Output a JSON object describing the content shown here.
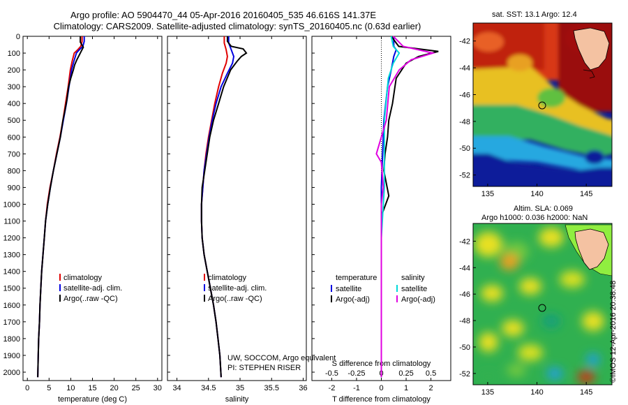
{
  "header": {
    "line1": "Argo profile: AO 5904470_44 05-Apr-2016 20160405_535 46.616S 141.37E",
    "line2": "Climatology: CARS2009. Satellite-adjusted climatology: synTS_20160405.nc (0.63d earlier)"
  },
  "footer": {
    "credit1": "UW, SOCCOM, Argo equivalent",
    "credit2": "PI: STEPHEN RISER",
    "stamp": "©IMOS 12-Apr-2016 20:38:48"
  },
  "chart_data": [
    {
      "type": "line",
      "panel": "temperature",
      "xlabel": "temperature (deg C)",
      "ylabel": "",
      "xlim": [
        -1,
        31
      ],
      "ylim": [
        2050,
        0
      ],
      "xticks": [
        0,
        5,
        10,
        15,
        20,
        25,
        30
      ],
      "yticks": [
        0,
        100,
        200,
        300,
        400,
        500,
        600,
        700,
        800,
        900,
        1000,
        1100,
        1200,
        1300,
        1400,
        1500,
        1600,
        1700,
        1800,
        1900,
        2000
      ],
      "legend": [
        "climatology",
        "satellite-adj. clim.",
        "Argo(..raw -QC)"
      ],
      "legend_position": "lower-center",
      "series": [
        {
          "name": "climatology",
          "color": "#e00000",
          "points": [
            [
              12.6,
              0
            ],
            [
              12.6,
              30
            ],
            [
              12.3,
              60
            ],
            [
              11.6,
              80
            ],
            [
              10.8,
              100
            ],
            [
              10.3,
              150
            ],
            [
              9.9,
              200
            ],
            [
              9.4,
              300
            ],
            [
              8.8,
              400
            ],
            [
              8.2,
              500
            ],
            [
              7.5,
              600
            ],
            [
              6.7,
              700
            ],
            [
              6.0,
              800
            ],
            [
              5.2,
              900
            ],
            [
              4.6,
              1000
            ],
            [
              4.2,
              1100
            ],
            [
              3.9,
              1200
            ],
            [
              3.6,
              1300
            ],
            [
              3.3,
              1400
            ],
            [
              3.1,
              1500
            ],
            [
              2.9,
              1600
            ],
            [
              2.8,
              1700
            ],
            [
              2.6,
              1800
            ],
            [
              2.5,
              1900
            ],
            [
              2.4,
              2030
            ]
          ]
        },
        {
          "name": "satellite-adj. clim.",
          "color": "#0000e0",
          "points": [
            [
              13.1,
              0
            ],
            [
              13.1,
              30
            ],
            [
              12.8,
              60
            ],
            [
              12.0,
              80
            ],
            [
              11.3,
              100
            ],
            [
              10.7,
              150
            ],
            [
              10.2,
              200
            ],
            [
              9.6,
              300
            ],
            [
              9.0,
              400
            ],
            [
              8.3,
              500
            ],
            [
              7.6,
              600
            ],
            [
              6.8,
              700
            ],
            [
              6.0,
              800
            ],
            [
              5.3,
              900
            ],
            [
              4.7,
              1000
            ],
            [
              4.2,
              1100
            ],
            [
              3.9,
              1200
            ],
            [
              3.6,
              1300
            ],
            [
              3.3,
              1400
            ],
            [
              3.1,
              1500
            ],
            [
              2.9,
              1600
            ],
            [
              2.8,
              1700
            ],
            [
              2.6,
              1800
            ],
            [
              2.5,
              1900
            ],
            [
              2.4,
              2030
            ]
          ]
        },
        {
          "name": "Argo(..raw -QC)",
          "color": "#000000",
          "points": [
            [
              12.2,
              0
            ],
            [
              12.2,
              35
            ],
            [
              12.9,
              65
            ],
            [
              12.4,
              90
            ],
            [
              12.0,
              110
            ],
            [
              11.4,
              140
            ],
            [
              10.9,
              170
            ],
            [
              10.6,
              200
            ],
            [
              10.0,
              250
            ],
            [
              9.5,
              300
            ],
            [
              9.1,
              380
            ],
            [
              8.6,
              450
            ],
            [
              8.2,
              500
            ],
            [
              7.6,
              600
            ],
            [
              6.8,
              700
            ],
            [
              6.0,
              800
            ],
            [
              5.3,
              900
            ],
            [
              4.7,
              1000
            ],
            [
              4.2,
              1100
            ],
            [
              3.9,
              1200
            ],
            [
              3.6,
              1300
            ],
            [
              3.3,
              1400
            ],
            [
              3.1,
              1500
            ],
            [
              2.9,
              1600
            ],
            [
              2.8,
              1700
            ],
            [
              2.6,
              1800
            ],
            [
              2.5,
              1900
            ],
            [
              2.4,
              2030
            ]
          ]
        }
      ]
    },
    {
      "type": "line",
      "panel": "salinity",
      "xlabel": "salinity",
      "ylabel": "",
      "xlim": [
        33.85,
        36.05
      ],
      "ylim": [
        2050,
        0
      ],
      "xticks": [
        34,
        34.5,
        35,
        35.5,
        36
      ],
      "legend": [
        "climatology",
        "satellite-adj. clim.",
        "Argo(..raw -QC)"
      ],
      "legend_position": "lower-center",
      "series": [
        {
          "name": "climatology",
          "color": "#e00000",
          "points": [
            [
              34.75,
              0
            ],
            [
              34.75,
              40
            ],
            [
              34.78,
              80
            ],
            [
              34.8,
              120
            ],
            [
              34.78,
              160
            ],
            [
              34.72,
              220
            ],
            [
              34.66,
              300
            ],
            [
              34.6,
              400
            ],
            [
              34.55,
              500
            ],
            [
              34.5,
              600
            ],
            [
              34.46,
              700
            ],
            [
              34.43,
              800
            ],
            [
              34.41,
              900
            ],
            [
              34.39,
              1000
            ],
            [
              34.39,
              1100
            ],
            [
              34.4,
              1200
            ],
            [
              34.43,
              1300
            ],
            [
              34.48,
              1400
            ],
            [
              34.53,
              1500
            ],
            [
              34.58,
              1600
            ],
            [
              34.62,
              1700
            ],
            [
              34.65,
              1800
            ],
            [
              34.68,
              1900
            ],
            [
              34.7,
              2030
            ]
          ]
        },
        {
          "name": "satellite-adj. clim.",
          "color": "#0000e0",
          "points": [
            [
              34.82,
              0
            ],
            [
              34.82,
              40
            ],
            [
              34.86,
              80
            ],
            [
              34.9,
              120
            ],
            [
              34.88,
              160
            ],
            [
              34.8,
              220
            ],
            [
              34.7,
              300
            ],
            [
              34.62,
              400
            ],
            [
              34.56,
              500
            ],
            [
              34.51,
              600
            ],
            [
              34.47,
              700
            ],
            [
              34.43,
              800
            ],
            [
              34.41,
              900
            ],
            [
              34.39,
              1000
            ],
            [
              34.39,
              1100
            ],
            [
              34.4,
              1200
            ],
            [
              34.43,
              1300
            ],
            [
              34.48,
              1400
            ],
            [
              34.53,
              1500
            ],
            [
              34.58,
              1600
            ],
            [
              34.62,
              1700
            ],
            [
              34.65,
              1800
            ],
            [
              34.68,
              1900
            ],
            [
              34.7,
              2030
            ]
          ]
        },
        {
          "name": "Argo(..raw -QC)",
          "color": "#000000",
          "points": [
            [
              34.8,
              0
            ],
            [
              34.8,
              30
            ],
            [
              34.86,
              60
            ],
            [
              35.05,
              75
            ],
            [
              35.1,
              100
            ],
            [
              35.02,
              120
            ],
            [
              34.95,
              150
            ],
            [
              34.85,
              200
            ],
            [
              34.74,
              300
            ],
            [
              34.66,
              400
            ],
            [
              34.58,
              500
            ],
            [
              34.52,
              600
            ],
            [
              34.48,
              700
            ],
            [
              34.44,
              800
            ],
            [
              34.4,
              900
            ],
            [
              34.39,
              1000
            ],
            [
              34.39,
              1100
            ],
            [
              34.4,
              1200
            ],
            [
              34.43,
              1300
            ],
            [
              34.48,
              1400
            ],
            [
              34.53,
              1500
            ],
            [
              34.58,
              1600
            ],
            [
              34.62,
              1700
            ],
            [
              34.65,
              1800
            ],
            [
              34.68,
              1900
            ],
            [
              34.7,
              2030
            ]
          ]
        }
      ]
    },
    {
      "type": "line",
      "panel": "difference",
      "xlabel": "T difference from climatology",
      "xlabel_secondary": "S difference from climatology",
      "ylabel": "",
      "xlim": [
        -2.8,
        2.8
      ],
      "xlim_secondary": [
        -0.7,
        0.7
      ],
      "ylim": [
        2050,
        0
      ],
      "xticks": [
        -2,
        -1,
        0,
        1,
        2
      ],
      "xticks_secondary": [
        -0.5,
        -0.25,
        0,
        0.25,
        0.5
      ],
      "legend_groups": [
        {
          "title": "temperature",
          "items": [
            "satellite",
            "Argo(-adj)"
          ]
        },
        {
          "title": "salinity",
          "items": [
            "satellite",
            "Argo(-adj)"
          ]
        }
      ],
      "series": [
        {
          "name": "temperature satellite",
          "color": "#0000e0",
          "axis": "T",
          "points": [
            [
              0.5,
              0
            ],
            [
              0.5,
              60
            ],
            [
              0.6,
              80
            ],
            [
              0.5,
              120
            ],
            [
              0.4,
              200
            ],
            [
              0.25,
              300
            ],
            [
              0.1,
              500
            ],
            [
              0.05,
              700
            ],
            [
              0,
              900
            ],
            [
              0,
              2030
            ]
          ]
        },
        {
          "name": "temperature Argo(-adj)",
          "color": "#000000",
          "axis": "T",
          "points": [
            [
              0.4,
              0
            ],
            [
              0.7,
              60
            ],
            [
              2.3,
              90
            ],
            [
              1.5,
              120
            ],
            [
              1.0,
              160
            ],
            [
              0.6,
              250
            ],
            [
              0.45,
              400
            ],
            [
              0.3,
              500
            ],
            [
              0.25,
              600
            ],
            [
              0.15,
              700
            ],
            [
              0.1,
              800
            ],
            [
              0.3,
              950
            ],
            [
              0.05,
              1050
            ],
            [
              0,
              1150
            ],
            [
              0,
              2030
            ]
          ]
        },
        {
          "name": "salinity satellite",
          "color": "#00d8d8",
          "axis": "S",
          "points": [
            [
              0.1,
              0
            ],
            [
              0.12,
              60
            ],
            [
              0.18,
              100
            ],
            [
              0.12,
              160
            ],
            [
              0.07,
              250
            ],
            [
              0.03,
              500
            ],
            [
              0.03,
              700
            ],
            [
              0.03,
              900
            ],
            [
              0,
              1200
            ],
            [
              0,
              2030
            ]
          ]
        },
        {
          "name": "salinity Argo(-adj)",
          "color": "#e000e0",
          "axis": "S",
          "points": [
            [
              0.12,
              0
            ],
            [
              0.22,
              60
            ],
            [
              0.52,
              100
            ],
            [
              0.3,
              140
            ],
            [
              0.18,
              200
            ],
            [
              0.08,
              300
            ],
            [
              0.05,
              500
            ],
            [
              -0.05,
              700
            ],
            [
              0,
              750
            ],
            [
              0.02,
              900
            ],
            [
              0,
              1000
            ],
            [
              0,
              2030
            ]
          ]
        }
      ]
    }
  ],
  "maps": [
    {
      "id": "sst_map",
      "title": "sat. SST: 13.1 Argo: 12.4",
      "xticks": [
        "135",
        "140",
        "145"
      ],
      "yticks": [
        "-42",
        "-44",
        "-46",
        "-48",
        "-50",
        "-52"
      ]
    },
    {
      "id": "sla_map",
      "title_line1": "Altim. SLA: 0.069",
      "title_line2": "Argo h1000: 0.036 h2000: NaN",
      "xticks": [
        "135",
        "140",
        "145"
      ],
      "yticks": [
        "-42",
        "-44",
        "-46",
        "-48",
        "-50",
        "-52"
      ]
    }
  ]
}
